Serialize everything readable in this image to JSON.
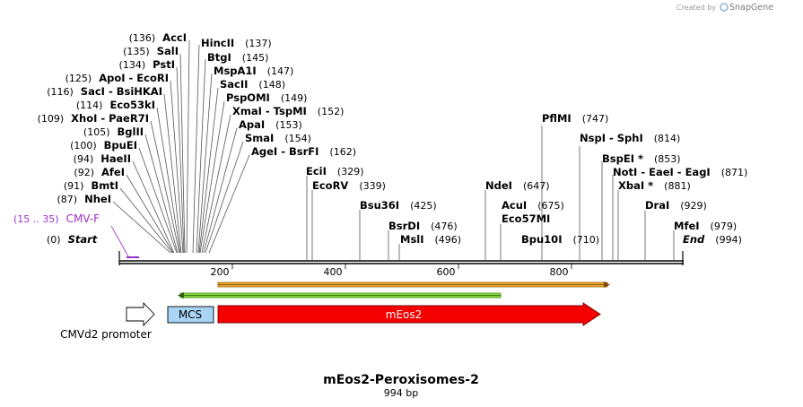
{
  "credit": {
    "prefix": "Created by",
    "brand": "SnapGene"
  },
  "map": {
    "title": "mEos2-Peroxisomes-2",
    "length_label": "994 bp",
    "total_bp": 994,
    "start": {
      "pos": "(0)",
      "label": "Start"
    },
    "end": {
      "pos": "(994)",
      "label": "End"
    },
    "primer": {
      "pos": "(15 .. 35)",
      "label": "CMV-F",
      "color": "#9b30c8"
    },
    "ticks": [
      {
        "bp": 200,
        "label": "200"
      },
      {
        "bp": 400,
        "label": "400"
      },
      {
        "bp": 600,
        "label": "600"
      },
      {
        "bp": 800,
        "label": "800"
      }
    ]
  },
  "sites_left": [
    {
      "pos": "(136)",
      "name": "AccI",
      "bp": 136
    },
    {
      "pos": "(135)",
      "name": "SalI",
      "bp": 135
    },
    {
      "pos": "(134)",
      "name": "PstI",
      "bp": 134
    },
    {
      "pos": "(125)",
      "name": "ApoI",
      "name2": "EcoRI",
      "bp": 125
    },
    {
      "pos": "(116)",
      "name": "SacI",
      "name2": "BsiHKAI",
      "bp": 116
    },
    {
      "pos": "(114)",
      "name": "Eco53kI",
      "bp": 114
    },
    {
      "pos": "(109)",
      "name": "XhoI",
      "name2": "PaeR7I",
      "bp": 109
    },
    {
      "pos": "(105)",
      "name": "BglII",
      "bp": 105
    },
    {
      "pos": "(100)",
      "name": "BpuEI",
      "bp": 100
    },
    {
      "pos": "(94)",
      "name": "HaeII",
      "bp": 94
    },
    {
      "pos": "(92)",
      "name": "AfeI",
      "bp": 92
    },
    {
      "pos": "(91)",
      "name": "BmtI",
      "bp": 91
    },
    {
      "pos": "(87)",
      "name": "NheI",
      "bp": 87
    }
  ],
  "sites_right_cluster": [
    {
      "name": "HincII",
      "pos": "(137)",
      "bp": 137
    },
    {
      "name": "BtgI",
      "pos": "(145)",
      "bp": 145
    },
    {
      "name": "MspA1I",
      "pos": "(147)",
      "bp": 147
    },
    {
      "name": "SacII",
      "pos": "(148)",
      "bp": 148
    },
    {
      "name": "PspOMI",
      "pos": "(149)",
      "bp": 149
    },
    {
      "name": "XmaI",
      "name2": "TspMI",
      "pos": "(152)",
      "bp": 152
    },
    {
      "name": "ApaI",
      "pos": "(153)",
      "bp": 153
    },
    {
      "name": "SmaI",
      "pos": "(154)",
      "bp": 154
    },
    {
      "name": "AgeI",
      "name2": "BsrFI",
      "pos": "(162)",
      "bp": 162
    }
  ],
  "sites_mid": [
    {
      "name": "EciI",
      "pos": "(329)",
      "bp": 329
    },
    {
      "name": "EcoRV",
      "pos": "(339)",
      "bp": 339
    },
    {
      "name": "Bsu36I",
      "pos": "(425)",
      "bp": 425
    },
    {
      "name": "BsrDI",
      "pos": "(476)",
      "bp": 476
    },
    {
      "name": "MslI",
      "pos": "(496)",
      "bp": 496
    },
    {
      "name": "NdeI",
      "pos": "(647)",
      "bp": 647
    },
    {
      "name": "AcuI",
      "pos": "(675)",
      "bp": 675
    },
    {
      "name": "Eco57MI",
      "pos": "",
      "bp": 675
    },
    {
      "name": "Bpu10I",
      "pos": "(710)",
      "bp": 710
    }
  ],
  "sites_far": [
    {
      "name": "PflMI",
      "pos": "(747)",
      "bp": 747
    },
    {
      "name": "NspI",
      "name2": "SphI",
      "pos": "(814)",
      "bp": 814
    },
    {
      "name": "BspEI *",
      "pos": "(853)",
      "bp": 853
    },
    {
      "name": "NotI",
      "name2": "EaeI",
      "name3": "EagI",
      "pos": "(871)",
      "bp": 871
    },
    {
      "name": "XbaI *",
      "pos": "(881)",
      "bp": 881
    },
    {
      "name": "DraI",
      "pos": "(929)",
      "bp": 929
    },
    {
      "name": "MfeI",
      "pos": "(979)",
      "bp": 979
    }
  ],
  "features": {
    "cmv_promoter": {
      "label": "CMVd2 promoter"
    },
    "mcs": {
      "label": "MCS",
      "color": "#a8d4f5"
    },
    "meos2": {
      "label": "mEos2",
      "color": "#f40000"
    },
    "orf_colors": {
      "orange": "#e8a530",
      "green": "#7fd63a"
    }
  }
}
